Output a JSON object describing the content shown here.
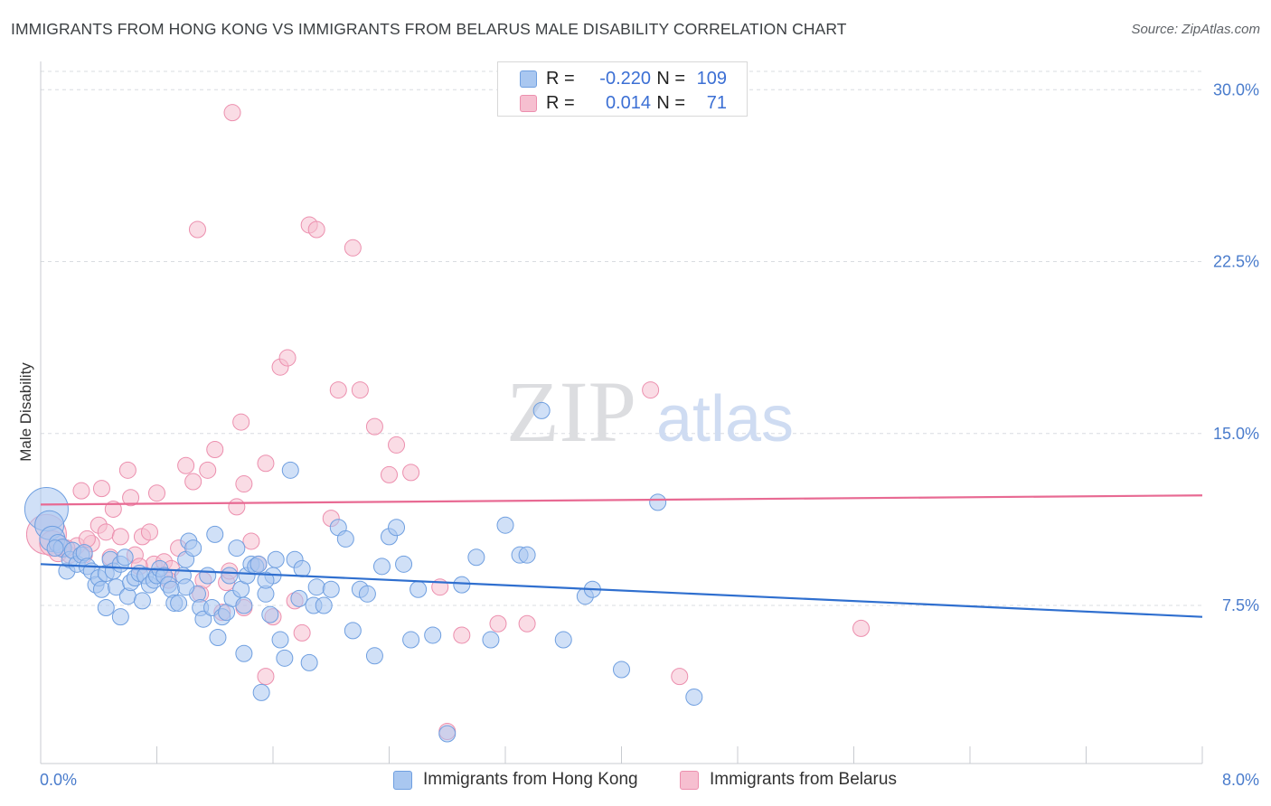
{
  "title": "IMMIGRANTS FROM HONG KONG VS IMMIGRANTS FROM BELARUS MALE DISABILITY CORRELATION CHART",
  "source": "Source: ZipAtlas.com",
  "watermark": {
    "zip": "ZIP",
    "atlas": "atlas"
  },
  "legend_top": {
    "rows": [
      {
        "r_label": "R =",
        "r_value": "-0.220",
        "n_label": "N =",
        "n_value": "109"
      },
      {
        "r_label": "R =",
        "r_value": "0.014",
        "n_label": "N =",
        "n_value": "71"
      }
    ]
  },
  "legend_bottom": {
    "items": [
      {
        "label": "Immigrants from Hong Kong"
      },
      {
        "label": "Immigrants from Belarus"
      }
    ]
  },
  "colors": {
    "blue_fill": "#a9c7f0",
    "blue_stroke": "#6f9fe0",
    "blue_line": "#2f6fcf",
    "pink_fill": "#f6bfd0",
    "pink_stroke": "#ec8fae",
    "pink_line": "#e86a93",
    "grid": "#d9dce1",
    "axis_text": "#4a7ccc"
  },
  "chart_data": {
    "type": "scatter",
    "title": "IMMIGRANTS FROM HONG KONG VS IMMIGRANTS FROM BELARUS MALE DISABILITY CORRELATION CHART",
    "xlabel": "",
    "ylabel": "Male Disability",
    "xlim": [
      0,
      8
    ],
    "ylim": [
      0.0,
      31.0
    ],
    "x_tick_labels": [
      "0.0%",
      "8.0%"
    ],
    "y_ticks": [
      7.5,
      15.0,
      22.5,
      30.0
    ],
    "y_tick_labels": [
      "7.5%",
      "15.0%",
      "22.5%",
      "30.0%"
    ],
    "grid": "horizontal dashed",
    "legend_position": "top-center",
    "series": [
      {
        "name": "Immigrants from Hong Kong",
        "color": "blue",
        "trend": {
          "x0": 0.0,
          "y0": 9.3,
          "x1": 8.0,
          "y1": 7.0
        },
        "points": [
          [
            0.04,
            11.7,
            24
          ],
          [
            0.06,
            11.0,
            16
          ],
          [
            0.08,
            10.4,
            14
          ],
          [
            0.12,
            10.2,
            10
          ],
          [
            0.15,
            10.0,
            10
          ],
          [
            0.18,
            9.0,
            9
          ],
          [
            0.2,
            9.5,
            9
          ],
          [
            0.22,
            9.9,
            9
          ],
          [
            0.25,
            9.3,
            9
          ],
          [
            0.28,
            9.7,
            9
          ],
          [
            0.3,
            9.8,
            9
          ],
          [
            0.32,
            9.2,
            9
          ],
          [
            0.35,
            9.0,
            9
          ],
          [
            0.38,
            8.4,
            9
          ],
          [
            0.4,
            8.7,
            9
          ],
          [
            0.42,
            8.2,
            9
          ],
          [
            0.45,
            8.9,
            9
          ],
          [
            0.48,
            9.5,
            9
          ],
          [
            0.5,
            9.0,
            9
          ],
          [
            0.52,
            8.3,
            9
          ],
          [
            0.55,
            9.3,
            9
          ],
          [
            0.58,
            9.6,
            9
          ],
          [
            0.6,
            7.9,
            9
          ],
          [
            0.62,
            8.5,
            9
          ],
          [
            0.65,
            8.7,
            9
          ],
          [
            0.68,
            8.9,
            9
          ],
          [
            0.7,
            7.7,
            9
          ],
          [
            0.72,
            8.8,
            9
          ],
          [
            0.75,
            8.4,
            9
          ],
          [
            0.78,
            8.6,
            9
          ],
          [
            0.8,
            8.8,
            9
          ],
          [
            0.82,
            9.1,
            9
          ],
          [
            0.85,
            8.8,
            9
          ],
          [
            0.88,
            8.4,
            9
          ],
          [
            0.9,
            8.2,
            9
          ],
          [
            0.92,
            7.6,
            9
          ],
          [
            0.95,
            7.6,
            9
          ],
          [
            0.98,
            8.8,
            9
          ],
          [
            1.0,
            9.5,
            9
          ],
          [
            1.02,
            10.3,
            9
          ],
          [
            1.05,
            10.0,
            9
          ],
          [
            1.08,
            8.0,
            9
          ],
          [
            1.1,
            7.4,
            9
          ],
          [
            1.12,
            6.9,
            9
          ],
          [
            1.15,
            8.8,
            9
          ],
          [
            1.18,
            7.4,
            9
          ],
          [
            1.2,
            10.6,
            9
          ],
          [
            1.22,
            6.1,
            9
          ],
          [
            1.25,
            7.0,
            9
          ],
          [
            1.28,
            7.2,
            9
          ],
          [
            1.3,
            8.8,
            9
          ],
          [
            1.32,
            7.8,
            9
          ],
          [
            1.35,
            10.0,
            9
          ],
          [
            1.38,
            8.2,
            9
          ],
          [
            1.4,
            5.4,
            9
          ],
          [
            1.42,
            8.8,
            9
          ],
          [
            1.45,
            9.3,
            9
          ],
          [
            1.48,
            9.2,
            9
          ],
          [
            1.5,
            9.3,
            9
          ],
          [
            1.52,
            3.7,
            9
          ],
          [
            1.55,
            8.0,
            9
          ],
          [
            1.58,
            7.1,
            9
          ],
          [
            1.6,
            8.8,
            9
          ],
          [
            1.62,
            9.5,
            9
          ],
          [
            1.65,
            6.0,
            9
          ],
          [
            1.68,
            5.2,
            9
          ],
          [
            1.72,
            13.4,
            9
          ],
          [
            1.75,
            9.5,
            9
          ],
          [
            1.78,
            7.8,
            9
          ],
          [
            1.8,
            9.1,
            9
          ],
          [
            1.85,
            5.0,
            9
          ],
          [
            1.88,
            7.5,
            9
          ],
          [
            1.9,
            8.3,
            9
          ],
          [
            1.95,
            7.5,
            9
          ],
          [
            2.0,
            8.2,
            9
          ],
          [
            2.05,
            10.9,
            9
          ],
          [
            2.1,
            10.4,
            9
          ],
          [
            2.15,
            6.4,
            9
          ],
          [
            2.2,
            8.2,
            9
          ],
          [
            2.25,
            8.0,
            9
          ],
          [
            2.3,
            5.3,
            9
          ],
          [
            2.35,
            9.2,
            9
          ],
          [
            2.4,
            10.5,
            9
          ],
          [
            2.45,
            10.9,
            9
          ],
          [
            2.5,
            9.3,
            9
          ],
          [
            2.55,
            6.0,
            9
          ],
          [
            2.6,
            8.2,
            9
          ],
          [
            2.7,
            6.2,
            9
          ],
          [
            2.8,
            1.9,
            9
          ],
          [
            2.9,
            8.4,
            9
          ],
          [
            3.0,
            9.6,
            9
          ],
          [
            3.1,
            6.0,
            9
          ],
          [
            3.2,
            11.0,
            9
          ],
          [
            3.3,
            9.7,
            9
          ],
          [
            3.35,
            9.7,
            9
          ],
          [
            3.45,
            16.0,
            9
          ],
          [
            3.6,
            6.0,
            9
          ],
          [
            3.75,
            7.9,
            9
          ],
          [
            3.8,
            8.2,
            9
          ],
          [
            4.0,
            4.7,
            9
          ],
          [
            4.25,
            12.0,
            9
          ],
          [
            4.5,
            3.5,
            9
          ],
          [
            0.1,
            10.0,
            9
          ],
          [
            0.45,
            7.4,
            9
          ],
          [
            0.55,
            7.0,
            9
          ],
          [
            1.0,
            8.3,
            9
          ],
          [
            1.4,
            7.5,
            9
          ],
          [
            1.55,
            8.6,
            9
          ]
        ]
      },
      {
        "name": "Immigrants from Belarus",
        "color": "pink",
        "trend": {
          "x0": 0.0,
          "y0": 11.9,
          "x1": 8.0,
          "y1": 12.3
        },
        "points": [
          [
            0.04,
            10.6,
            22
          ],
          [
            0.08,
            10.2,
            14
          ],
          [
            0.12,
            9.8,
            10
          ],
          [
            0.15,
            10.0,
            9
          ],
          [
            0.2,
            9.7,
            9
          ],
          [
            0.25,
            10.1,
            9
          ],
          [
            0.28,
            12.5,
            9
          ],
          [
            0.3,
            9.7,
            9
          ],
          [
            0.35,
            10.2,
            9
          ],
          [
            0.4,
            11.0,
            9
          ],
          [
            0.42,
            12.6,
            9
          ],
          [
            0.45,
            10.7,
            9
          ],
          [
            0.5,
            11.7,
            9
          ],
          [
            0.55,
            10.5,
            9
          ],
          [
            0.6,
            13.4,
            9
          ],
          [
            0.62,
            12.2,
            9
          ],
          [
            0.65,
            9.7,
            9
          ],
          [
            0.7,
            10.5,
            9
          ],
          [
            0.75,
            10.7,
            9
          ],
          [
            0.78,
            9.3,
            9
          ],
          [
            0.8,
            12.4,
            9
          ],
          [
            0.85,
            9.4,
            9
          ],
          [
            0.9,
            9.1,
            9
          ],
          [
            0.95,
            10.0,
            9
          ],
          [
            1.0,
            13.6,
            9
          ],
          [
            1.05,
            12.9,
            9
          ],
          [
            1.08,
            23.9,
            9
          ],
          [
            1.1,
            8.0,
            9
          ],
          [
            1.15,
            13.4,
            9
          ],
          [
            1.2,
            14.3,
            9
          ],
          [
            1.25,
            7.2,
            9
          ],
          [
            1.28,
            8.5,
            9
          ],
          [
            1.3,
            9.0,
            9
          ],
          [
            1.32,
            29.0,
            9
          ],
          [
            1.35,
            11.8,
            9
          ],
          [
            1.38,
            15.5,
            9
          ],
          [
            1.4,
            12.8,
            9
          ],
          [
            1.45,
            10.3,
            9
          ],
          [
            1.5,
            9.3,
            9
          ],
          [
            1.55,
            13.7,
            9
          ],
          [
            1.6,
            7.0,
            9
          ],
          [
            1.65,
            17.9,
            9
          ],
          [
            1.7,
            18.3,
            9
          ],
          [
            1.75,
            7.7,
            9
          ],
          [
            1.8,
            6.3,
            9
          ],
          [
            1.85,
            24.1,
            9
          ],
          [
            1.9,
            23.9,
            9
          ],
          [
            2.0,
            11.3,
            9
          ],
          [
            2.05,
            16.9,
            9
          ],
          [
            2.15,
            23.1,
            9
          ],
          [
            2.2,
            16.9,
            9
          ],
          [
            2.3,
            15.3,
            9
          ],
          [
            2.4,
            13.2,
            9
          ],
          [
            2.45,
            14.5,
            9
          ],
          [
            2.55,
            13.3,
            9
          ],
          [
            2.75,
            8.3,
            9
          ],
          [
            2.8,
            2.0,
            9
          ],
          [
            2.9,
            6.2,
            9
          ],
          [
            3.15,
            6.7,
            9
          ],
          [
            3.35,
            6.7,
            9
          ],
          [
            4.2,
            16.9,
            9
          ],
          [
            4.4,
            4.4,
            9
          ],
          [
            5.65,
            6.5,
            9
          ],
          [
            0.18,
            10.0,
            9
          ],
          [
            0.32,
            10.4,
            9
          ],
          [
            0.48,
            9.6,
            9
          ],
          [
            0.68,
            9.2,
            9
          ],
          [
            0.88,
            8.6,
            9
          ],
          [
            1.12,
            8.6,
            9
          ],
          [
            1.4,
            7.4,
            9
          ],
          [
            1.55,
            4.4,
            9
          ]
        ]
      }
    ]
  }
}
